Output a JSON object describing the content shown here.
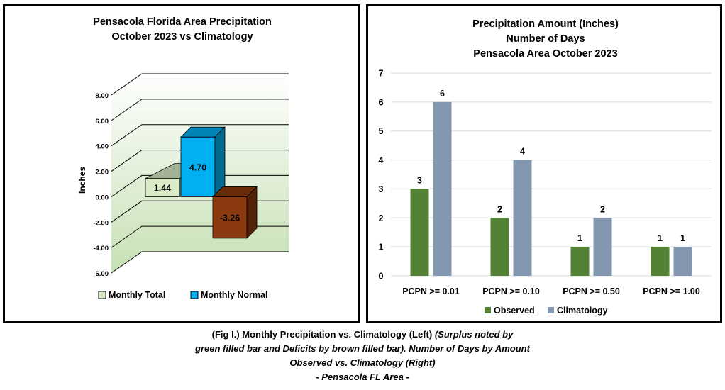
{
  "chart_data": [
    {
      "type": "bar",
      "title_lines": [
        "Pensacola Florida Area Precipitation",
        "October 2023 vs Climatology"
      ],
      "ylabel": "Inches",
      "ylim": [
        -6,
        8
      ],
      "yticks": [
        "8.00",
        "6.00",
        "4.00",
        "2.00",
        "0.00",
        "-2.00",
        "-4.00",
        "-6.00"
      ],
      "series": [
        {
          "name": "Monthly Total",
          "value": 1.44,
          "label": "1.44",
          "color": "#d9ecc7"
        },
        {
          "name": "Monthly Normal",
          "value": 4.7,
          "label": "4.70",
          "color": "#00b0f0"
        },
        {
          "name": "",
          "value": -3.26,
          "label": "-3.26",
          "color": "#8b3a0f"
        }
      ],
      "legend": [
        "Monthly Total",
        "Monthly Normal"
      ],
      "grid": true
    },
    {
      "type": "bar",
      "title_lines": [
        "Precipitation Amount (Inches)",
        "Number of Days",
        "Pensacola Area October 2023"
      ],
      "categories": [
        "PCPN >= 0.01",
        "PCPN >= 0.10",
        "PCPN >= 0.50",
        "PCPN >= 1.00"
      ],
      "series": [
        {
          "name": "Observed",
          "values": [
            3,
            2,
            1,
            1
          ],
          "color": "#548235"
        },
        {
          "name": "Climatology",
          "values": [
            6,
            4,
            2,
            1
          ],
          "color": "#8497b0"
        }
      ],
      "ylim": [
        0,
        7
      ],
      "yticks": [
        "0",
        "1",
        "2",
        "3",
        "4",
        "5",
        "6",
        "7"
      ],
      "legend_position": "bottom",
      "grid": true
    }
  ],
  "caption": {
    "line1_bold": "(Fig I.) Monthly Precipitation vs. Climatology (Left)",
    "line1_italic": " (Surplus noted by",
    "line2": "green filled bar and Deficits by brown filled bar). Number of Days by Amount",
    "line3": "Observed vs. Climatology (Right)",
    "line4": "- Pensacola FL Area -"
  }
}
